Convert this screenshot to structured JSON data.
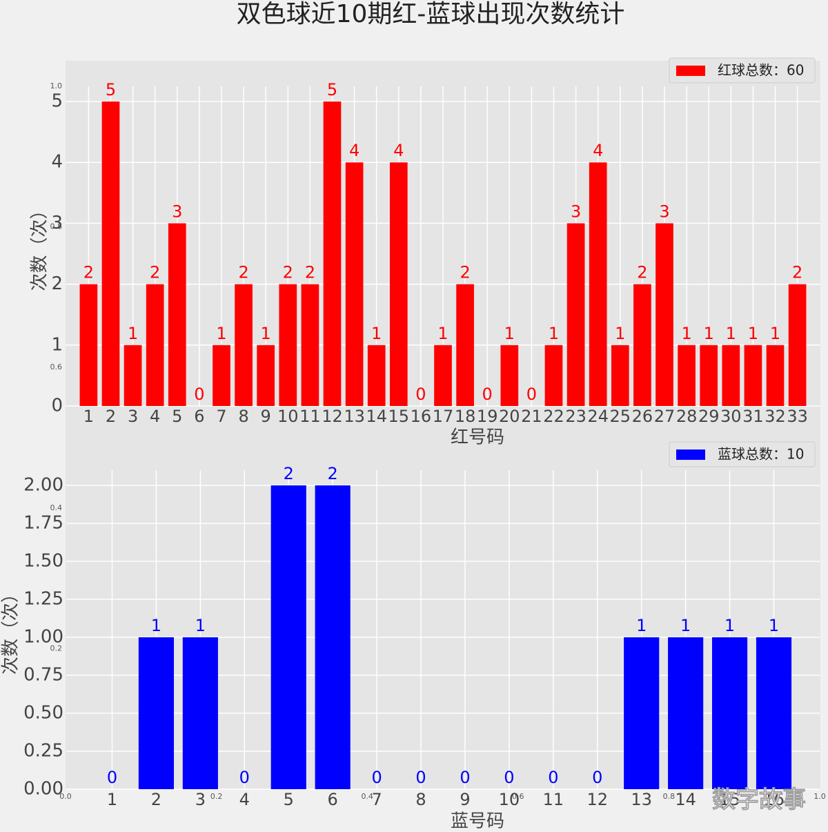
{
  "title": "双色球近10期红-蓝球出现次数统计",
  "watermark": "数字故事",
  "background_axes": {
    "xlim": [
      0,
      1
    ],
    "ylim": [
      0,
      1
    ],
    "xticks": [
      {
        "value": 0,
        "label": "0.0"
      },
      {
        "value": 0.2,
        "label": "0.2"
      },
      {
        "value": 0.4,
        "label": "0.4"
      },
      {
        "value": 0.6,
        "label": "0.6"
      },
      {
        "value": 0.8,
        "label": "0.8"
      },
      {
        "value": 1,
        "label": "1.0"
      }
    ],
    "yticks": [
      {
        "value": 0.2,
        "label": "0.2"
      },
      {
        "value": 0.4,
        "label": "0.4"
      },
      {
        "value": 0.6,
        "label": "0.6"
      },
      {
        "value": 0.8,
        "label": "0.8"
      },
      {
        "value": 1,
        "label": "1.0"
      }
    ]
  },
  "chart_data": [
    {
      "type": "bar",
      "x_label": "红号码",
      "y_label": "次数（次）",
      "categories": [
        "1",
        "2",
        "3",
        "4",
        "5",
        "6",
        "7",
        "8",
        "9",
        "10",
        "11",
        "12",
        "13",
        "14",
        "15",
        "16",
        "17",
        "18",
        "19",
        "20",
        "21",
        "22",
        "23",
        "24",
        "25",
        "26",
        "27",
        "28",
        "29",
        "30",
        "31",
        "32",
        "33"
      ],
      "series": [
        {
          "name": "红球总数：60",
          "color": "#ff0000",
          "values": [
            2,
            5,
            1,
            2,
            3,
            0,
            1,
            2,
            1,
            2,
            2,
            5,
            4,
            1,
            4,
            0,
            1,
            2,
            0,
            1,
            0,
            1,
            3,
            4,
            1,
            2,
            3,
            1,
            1,
            1,
            1,
            1,
            2
          ]
        }
      ],
      "ylim": [
        0,
        5.25
      ],
      "yticks": [
        0,
        1,
        2,
        3,
        4,
        5
      ],
      "grid": true,
      "legend": "upper right"
    },
    {
      "type": "bar",
      "x_label": "蓝号码",
      "y_label": "次数（次）",
      "categories": [
        "1",
        "2",
        "3",
        "4",
        "5",
        "6",
        "7",
        "8",
        "9",
        "10",
        "11",
        "12",
        "13",
        "14",
        "15",
        "16"
      ],
      "series": [
        {
          "name": "蓝球总数：10",
          "color": "#0000ff",
          "values": [
            0,
            1,
            1,
            0,
            2,
            2,
            0,
            0,
            0,
            0,
            0,
            0,
            1,
            1,
            1,
            1
          ]
        }
      ],
      "ylim": [
        0,
        2.1
      ],
      "yticks": [
        {
          "value": 0,
          "label": "0.00"
        },
        {
          "value": 0.25,
          "label": "0.25"
        },
        {
          "value": 0.5,
          "label": "0.50"
        },
        {
          "value": 0.75,
          "label": "0.75"
        },
        {
          "value": 1,
          "label": "1.00"
        },
        {
          "value": 1.25,
          "label": "1.25"
        },
        {
          "value": 1.5,
          "label": "1.50"
        },
        {
          "value": 1.75,
          "label": "1.75"
        },
        {
          "value": 2,
          "label": "2.00"
        }
      ],
      "grid": true,
      "legend": "upper right"
    }
  ]
}
